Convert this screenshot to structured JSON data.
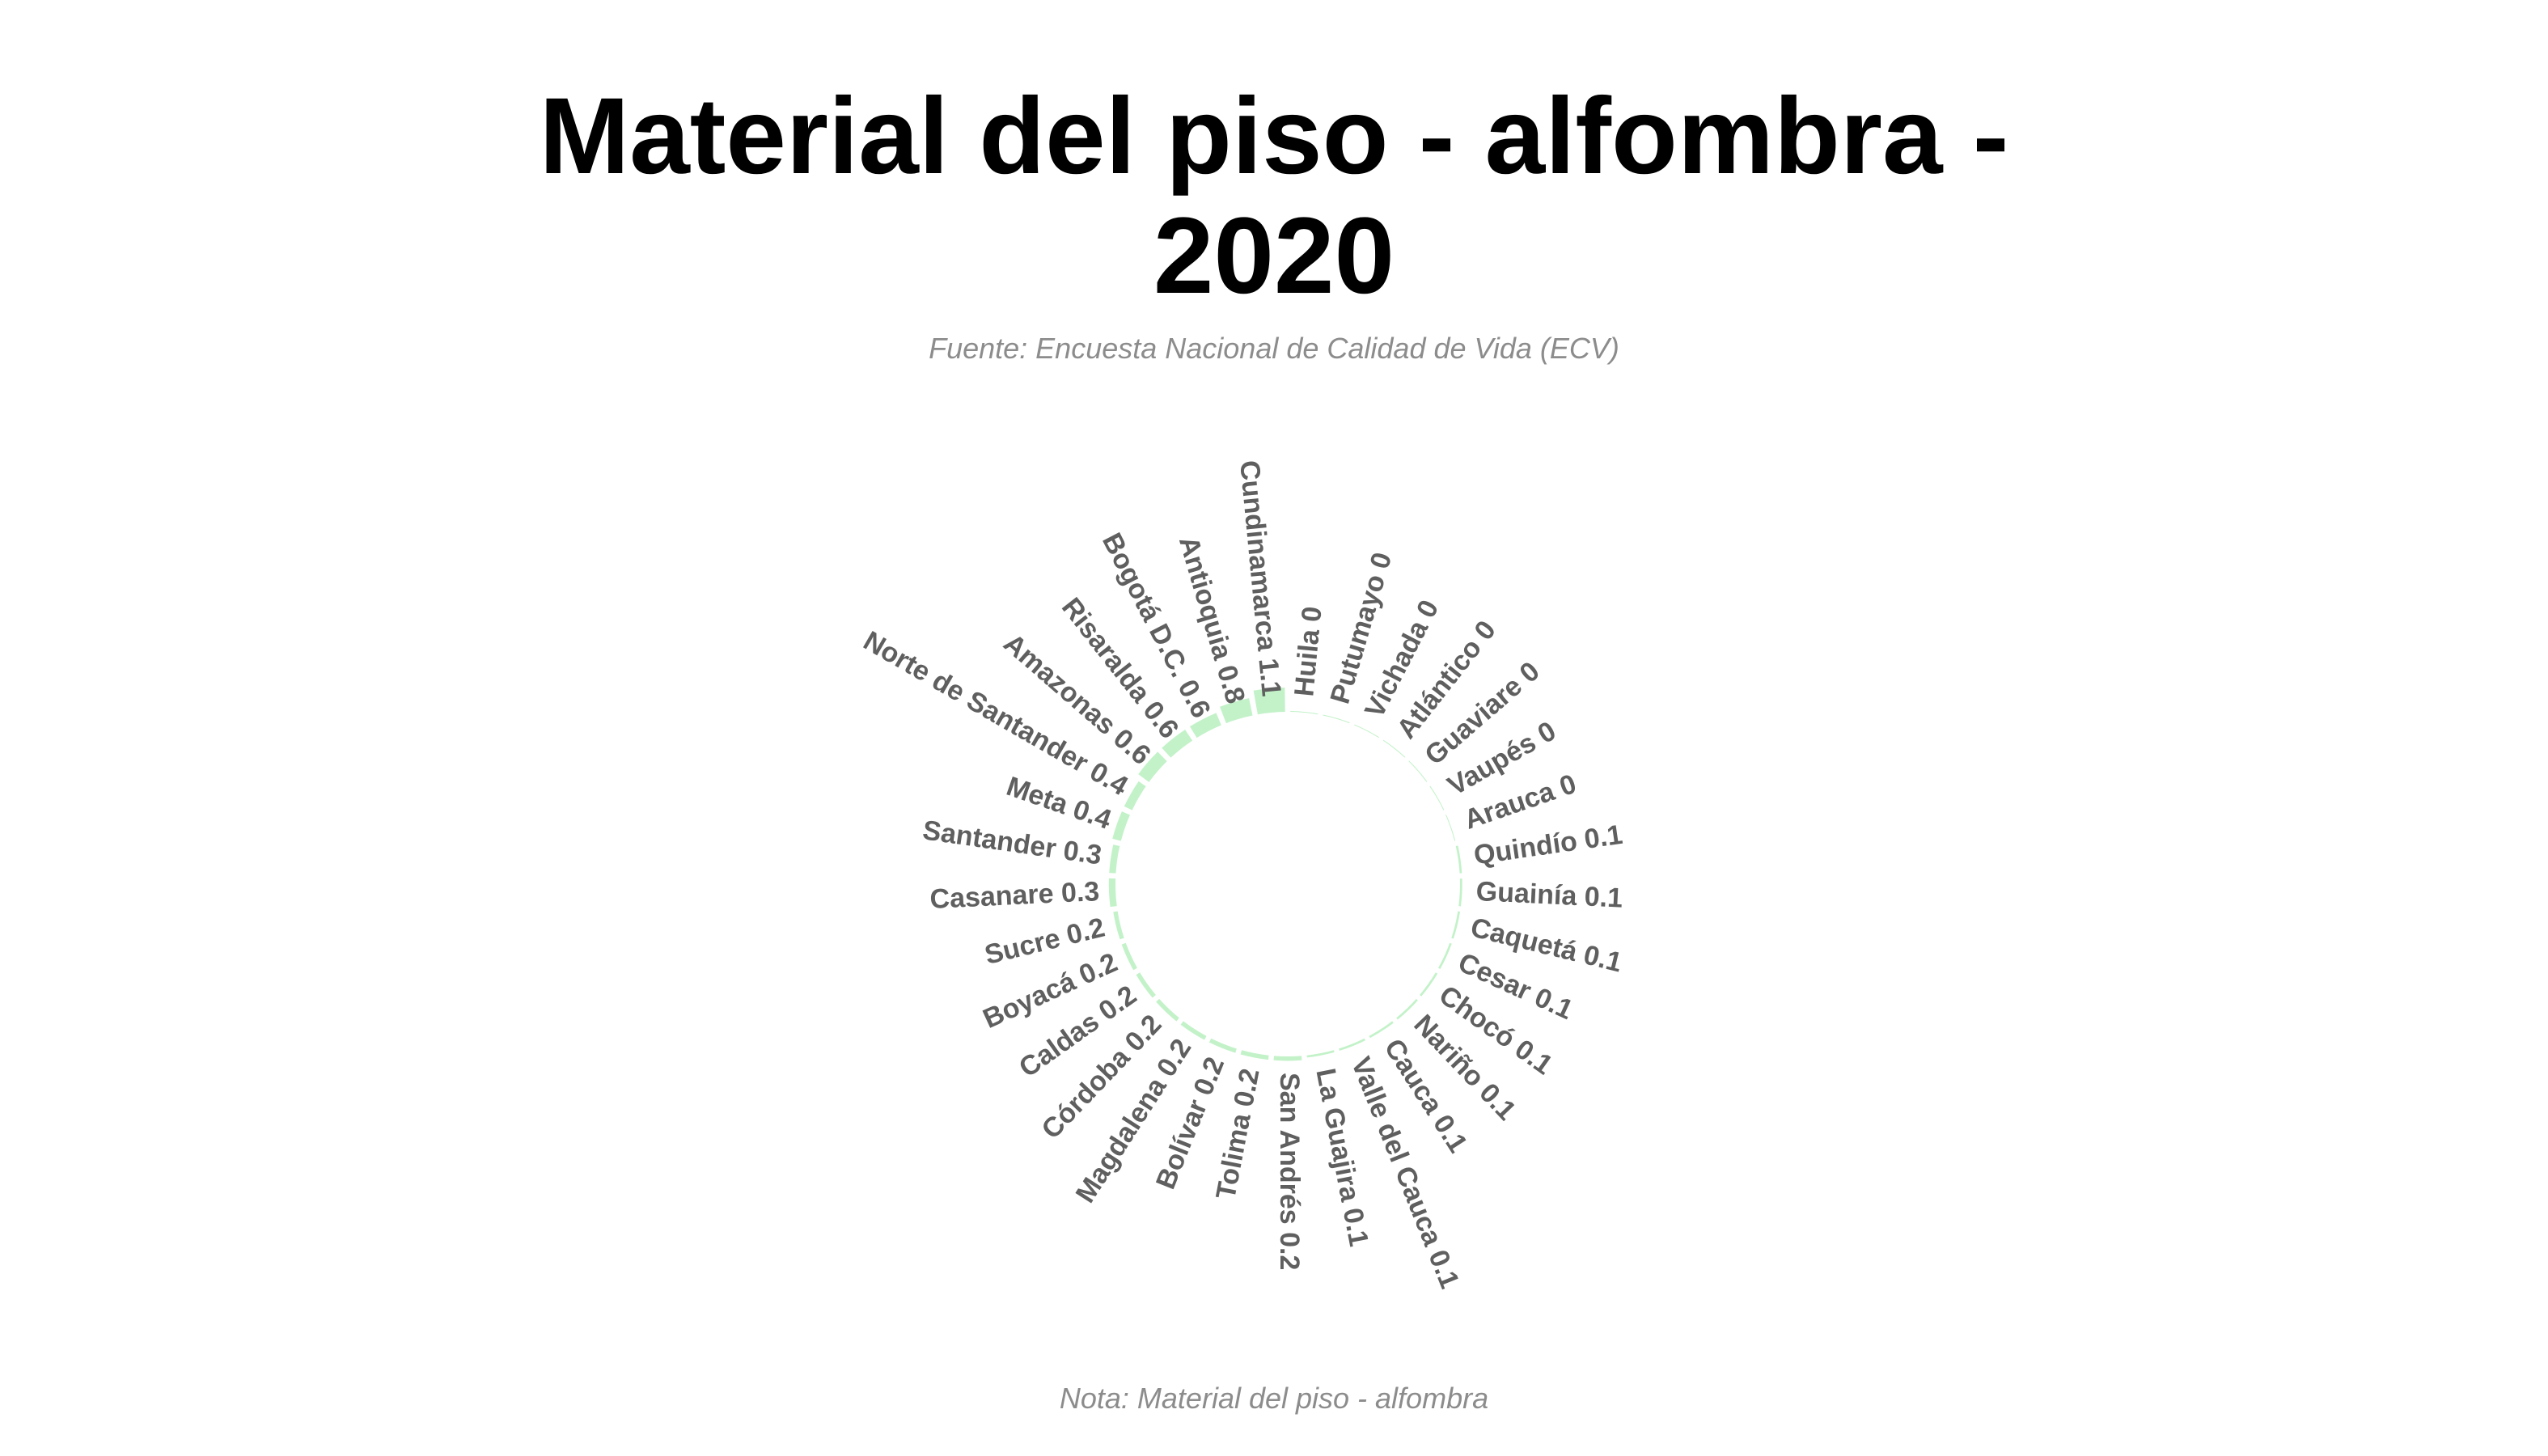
{
  "title": "Material del piso - alfombra -\n2020",
  "subtitle": "Fuente: Encuesta Nacional de Calidad de Vida (ECV)",
  "caption": "Nota: Material del piso - alfombra",
  "chart_data": {
    "type": "bar",
    "polar": true,
    "title": "Material del piso - alfombra - 2020",
    "subtitle": "Fuente: Encuesta Nacional de Calidad de Vida (ECV)",
    "caption": "Nota: Material del piso - alfombra",
    "categories": [
      "Huila",
      "Putumayo",
      "Vichada",
      "Atlántico",
      "Guaviare",
      "Vaupés",
      "Arauca",
      "Quindío",
      "Guainía",
      "Caquetá",
      "Cesar",
      "Chocó",
      "Nariño",
      "Cauca",
      "Valle del Cauca",
      "La Guajira",
      "San Andrés",
      "Tolima",
      "Bolívar",
      "Magdalena",
      "Córdoba",
      "Caldas",
      "Boyacá",
      "Sucre",
      "Casanare",
      "Santander",
      "Meta",
      "Norte de Santander",
      "Amazonas",
      "Risaralda",
      "Bogotá D.C.",
      "Antioquia",
      "Cundinamarca"
    ],
    "values": [
      0,
      0,
      0,
      0,
      0,
      0,
      0,
      0.1,
      0.1,
      0.1,
      0.1,
      0.1,
      0.1,
      0.1,
      0.1,
      0.1,
      0.2,
      0.2,
      0.2,
      0.2,
      0.2,
      0.2,
      0.2,
      0.2,
      0.3,
      0.3,
      0.4,
      0.4,
      0.6,
      0.6,
      0.6,
      0.8,
      1.1
    ],
    "labels": [
      "Huila 0",
      "Putumayo 0",
      "Vichada 0",
      "Atlántico 0",
      "Guaviare 0",
      "Vaupés 0",
      "Arauca 0",
      "Quindío 0.1",
      "Guainía 0.1",
      "Caquetá 0.1",
      "Cesar 0.1",
      "Chocó 0.1",
      "Nariño 0.1",
      "Cauca 0.1",
      "Valle del Cauca 0.1",
      "La Guajira 0.1",
      "San Andrés 0.2",
      "Tolima 0.2",
      "Bolívar 0.2",
      "Magdalena 0.2",
      "Córdoba 0.2",
      "Caldas 0.2",
      "Boyacá 0.2",
      "Sucre 0.2",
      "Casanare 0.3",
      "Santander 0.3",
      "Meta 0.4",
      "Norte de Santander 0.4",
      "Amazonas 0.6",
      "Risaralda 0.6",
      "Bogotá D.C. 0.6",
      "Antioquia 0.8",
      "Cundinamarca 1.1"
    ],
    "bar_color": "#b8f0c0",
    "label_color": "#5f5f5f",
    "grid": false,
    "legend": "none"
  }
}
